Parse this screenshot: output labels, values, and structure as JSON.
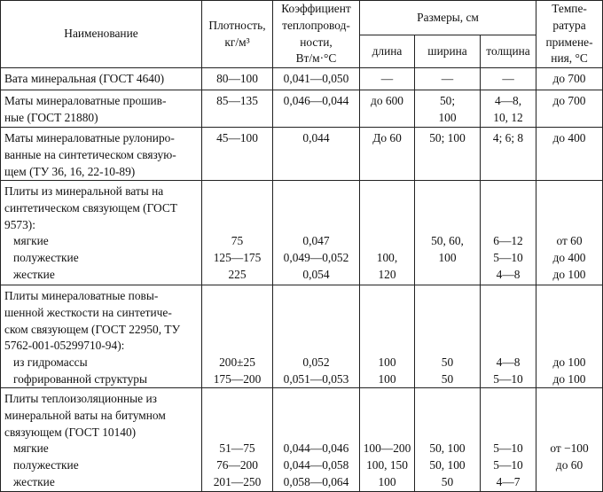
{
  "header": {
    "name": "Наименование",
    "density": [
      "Плотность,",
      "кг/м³"
    ],
    "conductivity": [
      "Коэффициент",
      "теплопровод-",
      "ности,",
      "Вт/м·°С"
    ],
    "sizes": "Размеры, см",
    "length": "длина",
    "width": "ширина",
    "thickness": "толщина",
    "temperature": [
      "Темпе-",
      "ратура",
      "примене-",
      "ния, °С"
    ]
  },
  "rows": [
    {
      "name": [
        "Вата минеральная (ГОСТ 4640)"
      ],
      "cells": [
        [
          "80—100"
        ],
        [
          "0,041—0,050"
        ],
        [
          "—"
        ],
        [
          "—"
        ],
        [
          "—"
        ],
        [
          "до 700"
        ]
      ]
    },
    {
      "name": [
        "Маты минераловатные прошив-",
        "ные (ГОСТ 21880)"
      ],
      "cells": [
        [
          "85—135"
        ],
        [
          "0,046—0,044"
        ],
        [
          "до 600"
        ],
        [
          "50;",
          "100"
        ],
        [
          "4—8,",
          "10, 12"
        ],
        [
          "до 700"
        ]
      ]
    },
    {
      "name": [
        "Маты минераловатные рулониро-",
        "ванные на синтетическом связую-",
        "щем (ТУ 36, 16, 22-10-89)"
      ],
      "cells": [
        [
          "45—100"
        ],
        [
          "0,044"
        ],
        [
          "До 60"
        ],
        [
          "50; 100"
        ],
        [
          "4; 6; 8"
        ],
        [
          "до 400"
        ]
      ]
    },
    {
      "name": [
        "Плиты из минеральной ваты на",
        "синтетическом связующем (ГОСТ",
        "9573):",
        "~мягкие",
        "~полужесткие",
        "~жесткие"
      ],
      "cells": [
        [
          "",
          "",
          "",
          "75",
          "125—175",
          "225"
        ],
        [
          "",
          "",
          "",
          "0,047",
          "0,049—0,052",
          "0,054"
        ],
        [
          "",
          "",
          "",
          "",
          "100,",
          "120"
        ],
        [
          "",
          "",
          "",
          "50, 60,",
          "100",
          ""
        ],
        [
          "",
          "",
          "",
          "6—12",
          "5—10",
          "4—8"
        ],
        [
          "",
          "",
          "",
          "от 60",
          "до 400",
          "до 100"
        ]
      ]
    },
    {
      "name": [
        "Плиты минераловатные повы-",
        "шенной жесткости на синтетиче-",
        "ском связующем (ГОСТ 22950, ТУ",
        "5762-001-05299710-94):",
        "~из гидромассы",
        "~гофрированной структуры"
      ],
      "cells": [
        [
          "",
          "",
          "",
          "",
          "200±25",
          "175—200"
        ],
        [
          "",
          "",
          "",
          "",
          "0,052",
          "0,051—0,053"
        ],
        [
          "",
          "",
          "",
          "",
          "100",
          "100"
        ],
        [
          "",
          "",
          "",
          "",
          "50",
          "50"
        ],
        [
          "",
          "",
          "",
          "",
          "4—8",
          "5—10"
        ],
        [
          "",
          "",
          "",
          "",
          "до 100",
          "до 100"
        ]
      ]
    },
    {
      "name": [
        "Плиты теплоизоляционные из",
        "минеральной ваты на битумном",
        "связующем (ГОСТ 10140)",
        "~мягкие",
        "~полужесткие",
        "~жесткие"
      ],
      "cells": [
        [
          "",
          "",
          "",
          "51—75",
          "76—200",
          "201—250"
        ],
        [
          "",
          "",
          "",
          "0,044—0,046",
          "0,044—0,058",
          "0,058—0,064"
        ],
        [
          "",
          "",
          "",
          "100—200",
          "100, 150",
          "100"
        ],
        [
          "",
          "",
          "",
          "50, 100",
          "50, 100",
          "50"
        ],
        [
          "",
          "",
          "",
          "5—10",
          "5—10",
          "4—7"
        ],
        [
          "",
          "",
          "",
          "от −100",
          "до 60",
          ""
        ]
      ]
    }
  ]
}
